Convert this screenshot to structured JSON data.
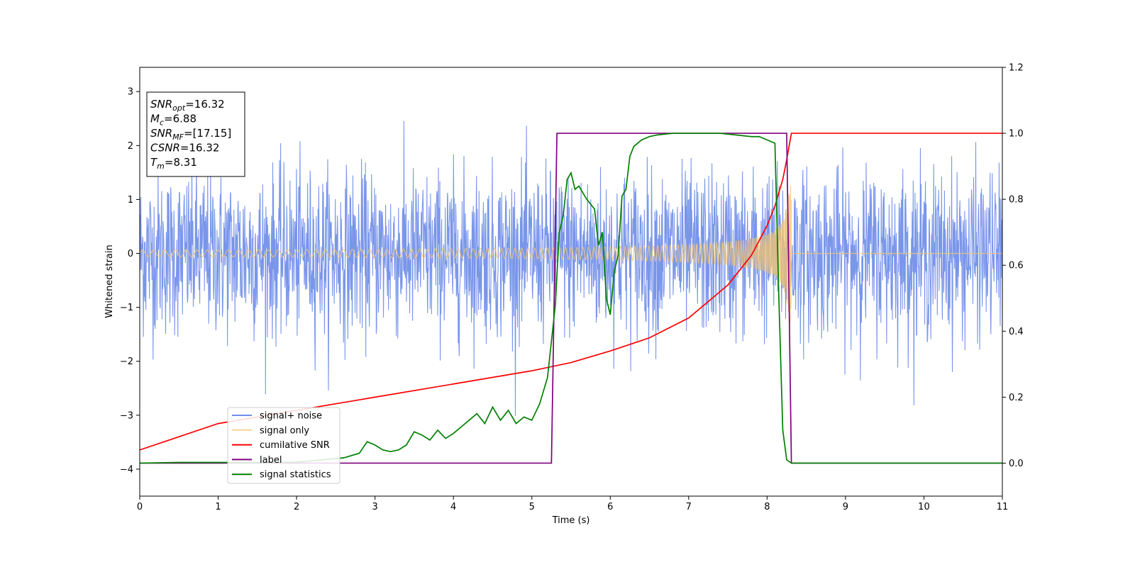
{
  "chart_data": {
    "type": "line",
    "xlabel": "Time (s)",
    "ylabel": "Whitened strain",
    "xlim": [
      0,
      11
    ],
    "ylim_left": [
      -4.5,
      3.45
    ],
    "ylim_right": [
      -0.1,
      1.2
    ],
    "x_ticks": [
      0,
      1,
      2,
      3,
      4,
      5,
      6,
      7,
      8,
      9,
      10,
      11
    ],
    "y_ticks_left": [
      -4,
      -3,
      -2,
      -1,
      0,
      1,
      2,
      3
    ],
    "y_ticks_right": [
      0.0,
      0.2,
      0.4,
      0.6,
      0.8,
      1.0,
      1.2
    ],
    "grid": false,
    "legend_position": "lower-left",
    "info_box": {
      "lines": [
        {
          "sym": "SNR",
          "sub": "opt",
          "val": "=16.32"
        },
        {
          "sym": "M",
          "sub": "c",
          "val": "=6.88"
        },
        {
          "sym": "SNR",
          "sub": "MF",
          "val": "=[17.15]"
        },
        {
          "sym": "CSNR",
          "sub": "",
          "val": "=16.32"
        },
        {
          "sym": "T",
          "sub": "m",
          "val": "=8.31"
        }
      ]
    },
    "series": [
      {
        "name": "signal+ noise",
        "axis": "left",
        "color": "#4169e1",
        "noise_sigma": 0.75,
        "x_range": [
          0,
          11
        ]
      },
      {
        "name": "signal only",
        "axis": "left",
        "color": "#f5c66e",
        "merger_time": 8.31,
        "chirp_amplitude_start": 0.06,
        "chirp_amplitude_peak": 1.3
      },
      {
        "name": "cumilative SNR",
        "axis": "right",
        "color": "#ff0000",
        "x": [
          0,
          1,
          2,
          3,
          4,
          5,
          5.5,
          6,
          6.5,
          7,
          7.5,
          7.8,
          8.0,
          8.1,
          8.2,
          8.25,
          8.31,
          11
        ],
        "y": [
          0.04,
          0.12,
          0.16,
          0.2,
          0.24,
          0.28,
          0.305,
          0.34,
          0.38,
          0.44,
          0.54,
          0.63,
          0.72,
          0.78,
          0.86,
          0.92,
          1.0,
          1.0
        ]
      },
      {
        "name": "label",
        "axis": "right",
        "color": "#800080",
        "x": [
          0,
          5.25,
          5.32,
          8.25,
          8.31,
          11
        ],
        "y": [
          0,
          0,
          1,
          1,
          0,
          0
        ]
      },
      {
        "name": "signal statistics",
        "axis": "right",
        "color": "#008000",
        "x": [
          0,
          0.5,
          1,
          1.5,
          2,
          2.2,
          2.4,
          2.6,
          2.8,
          2.9,
          3.0,
          3.1,
          3.2,
          3.3,
          3.4,
          3.5,
          3.6,
          3.7,
          3.8,
          3.9,
          4.0,
          4.1,
          4.2,
          4.3,
          4.4,
          4.5,
          4.6,
          4.7,
          4.8,
          4.9,
          5.0,
          5.1,
          5.2,
          5.3,
          5.35,
          5.4,
          5.45,
          5.5,
          5.55,
          5.6,
          5.7,
          5.8,
          5.85,
          5.9,
          5.95,
          6.0,
          6.05,
          6.1,
          6.15,
          6.2,
          6.25,
          6.3,
          6.4,
          6.5,
          6.6,
          6.8,
          7.0,
          7.2,
          7.4,
          7.6,
          7.8,
          7.9,
          8.0,
          8.1,
          8.15,
          8.2,
          8.25,
          8.31,
          8.4,
          11
        ],
        "y": [
          0.0,
          0.002,
          0.002,
          0.002,
          0.003,
          0.007,
          0.012,
          0.016,
          0.03,
          0.065,
          0.055,
          0.04,
          0.035,
          0.04,
          0.055,
          0.095,
          0.085,
          0.07,
          0.1,
          0.075,
          0.09,
          0.11,
          0.13,
          0.15,
          0.12,
          0.17,
          0.13,
          0.16,
          0.12,
          0.14,
          0.13,
          0.18,
          0.26,
          0.48,
          0.7,
          0.75,
          0.86,
          0.88,
          0.83,
          0.84,
          0.8,
          0.77,
          0.66,
          0.7,
          0.5,
          0.45,
          0.58,
          0.63,
          0.81,
          0.83,
          0.93,
          0.96,
          0.98,
          0.99,
          0.995,
          1.0,
          1.0,
          1.0,
          1.0,
          0.995,
          0.99,
          0.99,
          0.98,
          0.97,
          0.5,
          0.1,
          0.01,
          0.0,
          0.0,
          0.0
        ]
      }
    ]
  }
}
